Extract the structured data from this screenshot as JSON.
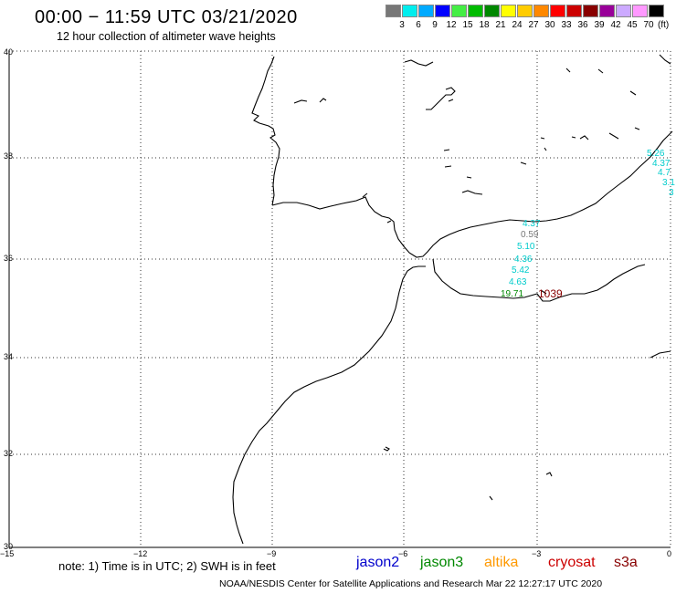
{
  "header": {
    "title": "00:00 − 11:59 UTC 03/21/2020",
    "subtitle": "12 hour collection of altimeter wave heights"
  },
  "scale": {
    "unit": "(ft)",
    "colors": [
      "#777777",
      "#00eeee",
      "#00aaff",
      "#0000ff",
      "#44ee44",
      "#00bb00",
      "#008800",
      "#ffff00",
      "#ffcc00",
      "#ff8800",
      "#ff0000",
      "#cc0000",
      "#880000",
      "#990099",
      "#ccaaff",
      "#ff99ff",
      "#000000"
    ],
    "labels": [
      "3",
      "6",
      "9",
      "12",
      "15",
      "18",
      "21",
      "24",
      "27",
      "30",
      "33",
      "36",
      "39",
      "42",
      "45",
      "70"
    ]
  },
  "axes": {
    "y_labels": [
      "40",
      "38",
      "36",
      "34",
      "32",
      "30"
    ],
    "x_labels": [
      "−15",
      "−12",
      "−9",
      "−6",
      "−3",
      "0"
    ]
  },
  "observations": [
    {
      "text": "5.26",
      "color": "#00cccc"
    },
    {
      "text": "4.37",
      "color": "#00cccc"
    },
    {
      "text": "4.7",
      "color": "#00cccc"
    },
    {
      "text": "3.1",
      "color": "#00cccc"
    },
    {
      "text": "3",
      "color": "#00cccc"
    },
    {
      "text": "4.37",
      "color": "#00cccc"
    },
    {
      "text": "0.59",
      "color": "#777777"
    },
    {
      "text": "5.10",
      "color": "#00cccc"
    },
    {
      "text": "4.36",
      "color": "#00cccc"
    },
    {
      "text": "5.42",
      "color": "#00cccc"
    },
    {
      "text": "4.63",
      "color": "#00cccc"
    },
    {
      "text": "19.71",
      "color": "#008800"
    },
    {
      "text": "1039",
      "color": "#880000"
    }
  ],
  "note": "note: 1) Time is in UTC; 2) SWH is in feet",
  "satellites": [
    {
      "name": "jason2",
      "color": "#0000cc"
    },
    {
      "name": "jason3",
      "color": "#008800"
    },
    {
      "name": "altika",
      "color": "#ff9900"
    },
    {
      "name": "cryosat",
      "color": "#cc0000"
    },
    {
      "name": "s3a",
      "color": "#880000"
    }
  ],
  "footer": "NOAA/NESDIS Center for Satellite Applications and Research    Mar 22 12:27:17 UTC 2020"
}
